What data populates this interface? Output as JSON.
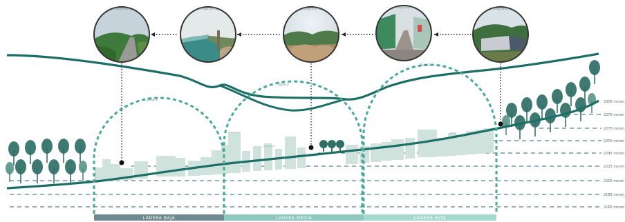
{
  "zones": [
    {
      "label": "LADERA BAJA",
      "color": "#6f8a8e"
    },
    {
      "label": "LADERA MEDIA",
      "color": "#8ec7bc"
    },
    {
      "label": "LADERA ALTA",
      "color": "#a7d8cd"
    }
  ],
  "elevations": [
    "2305 msnm",
    "2275 msnm",
    "2270 msnm",
    "2250 msnm",
    "2245 msnm",
    "2225 msnm",
    "2205 msnm",
    "2185 msnm",
    "2165 msnm"
  ],
  "dome_labels": [
    "Zona 1",
    "Zona 2",
    "Zona 3"
  ],
  "photo_captions": [
    "Fotografía 1",
    "Fotografía 2",
    "Fotografía 3",
    "Fotografía 4",
    "Fotografía 5"
  ],
  "colors": {
    "teal_dark": "#1c6e66",
    "teal_mid": "#3e9d90",
    "building": "#cfe3dc",
    "tree": "#2f6f66",
    "dash": "#2e6670"
  }
}
